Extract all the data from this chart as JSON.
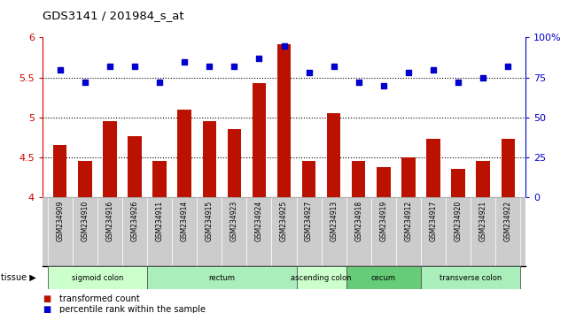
{
  "title": "GDS3141 / 201984_s_at",
  "samples": [
    "GSM234909",
    "GSM234910",
    "GSM234916",
    "GSM234926",
    "GSM234911",
    "GSM234914",
    "GSM234915",
    "GSM234923",
    "GSM234924",
    "GSM234925",
    "GSM234927",
    "GSM234913",
    "GSM234918",
    "GSM234919",
    "GSM234912",
    "GSM234917",
    "GSM234920",
    "GSM234921",
    "GSM234922"
  ],
  "bar_values": [
    4.65,
    4.45,
    4.95,
    4.77,
    4.45,
    5.1,
    4.95,
    4.85,
    5.43,
    5.92,
    4.45,
    5.05,
    4.45,
    4.38,
    4.5,
    4.73,
    4.35,
    4.45,
    4.73
  ],
  "dot_values": [
    80,
    72,
    82,
    82,
    72,
    85,
    82,
    82,
    87,
    95,
    78,
    82,
    72,
    70,
    78,
    80,
    72,
    75,
    82
  ],
  "ylim_left": [
    4.0,
    6.0
  ],
  "ylim_right": [
    0,
    100
  ],
  "yticks_left": [
    4.0,
    4.5,
    5.0,
    5.5,
    6.0
  ],
  "ytick_labels_left": [
    "4",
    "4.5",
    "5",
    "5.5",
    "6"
  ],
  "yticks_right": [
    0,
    25,
    50,
    75,
    100
  ],
  "ytick_labels_right": [
    "0",
    "25",
    "50",
    "75",
    "100%"
  ],
  "hlines": [
    4.5,
    5.0,
    5.5
  ],
  "bar_color": "#bb1100",
  "dot_color": "#0000cc",
  "tissue_groups": [
    {
      "label": "sigmoid colon",
      "start": 0,
      "end": 4,
      "color": "#ccffcc"
    },
    {
      "label": "rectum",
      "start": 4,
      "end": 10,
      "color": "#aaeebb"
    },
    {
      "label": "ascending colon",
      "start": 10,
      "end": 12,
      "color": "#ccffcc"
    },
    {
      "label": "cecum",
      "start": 12,
      "end": 15,
      "color": "#66cc77"
    },
    {
      "label": "transverse colon",
      "start": 15,
      "end": 19,
      "color": "#aaeebb"
    }
  ],
  "legend_items": [
    {
      "label": "transformed count",
      "color": "#bb1100"
    },
    {
      "label": "percentile rank within the sample",
      "color": "#0000cc"
    }
  ],
  "left_axis_color": "#cc0000",
  "right_axis_color": "#0000cc",
  "bg_color": "#ffffff",
  "tick_bg_color": "#cccccc",
  "grid_color": "#888888"
}
